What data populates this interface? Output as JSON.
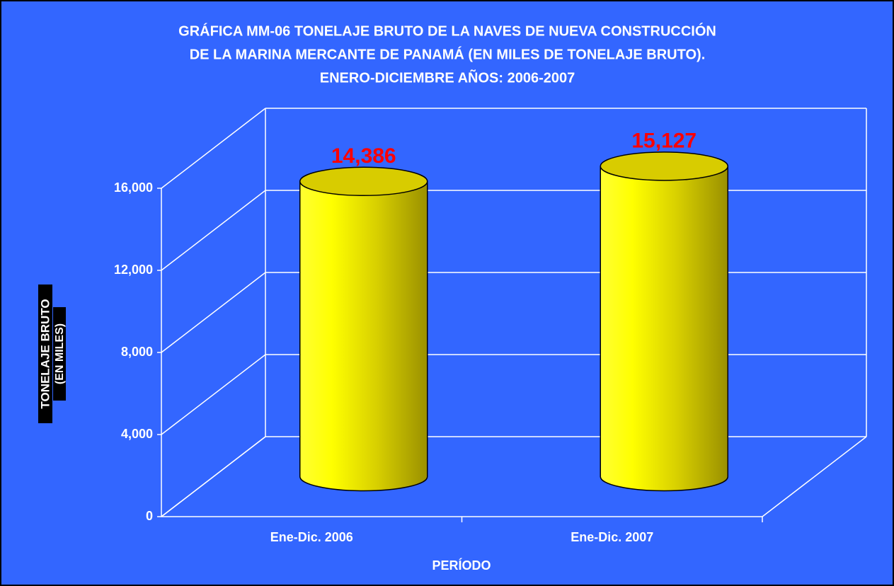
{
  "chart_data": {
    "type": "bar3d",
    "title": [
      "GRÁFICA MM-06 TONELAJE BRUTO DE LA NAVES DE NUEVA CONSTRUCCIÓN",
      "DE LA MARINA MERCANTE DE PANAMÁ (EN MILES DE TONELAJE BRUTO).",
      "ENERO-DICIEMBRE AÑOS: 2006-2007"
    ],
    "y_label": [
      "TONELAJE BRUTO",
      "(EN MILES)"
    ],
    "x_label": "PERÍODO",
    "categories": [
      "Ene-Dic. 2006",
      "Ene-Dic. 2007"
    ],
    "values": [
      14386,
      15127
    ],
    "value_labels": [
      "14,386",
      "15,127"
    ],
    "color": "#ffff00",
    "label_color": "#ff0000",
    "ylim": [
      0,
      16000
    ],
    "yticks": [
      0,
      {
        "value": 4000,
        "label": "4,000"
      },
      {
        "value": 8000,
        "label": "8,000"
      },
      {
        "value": 12000,
        "label": "12,000"
      },
      {
        "value": 16000,
        "label": "16,000"
      }
    ],
    "grid": true
  }
}
